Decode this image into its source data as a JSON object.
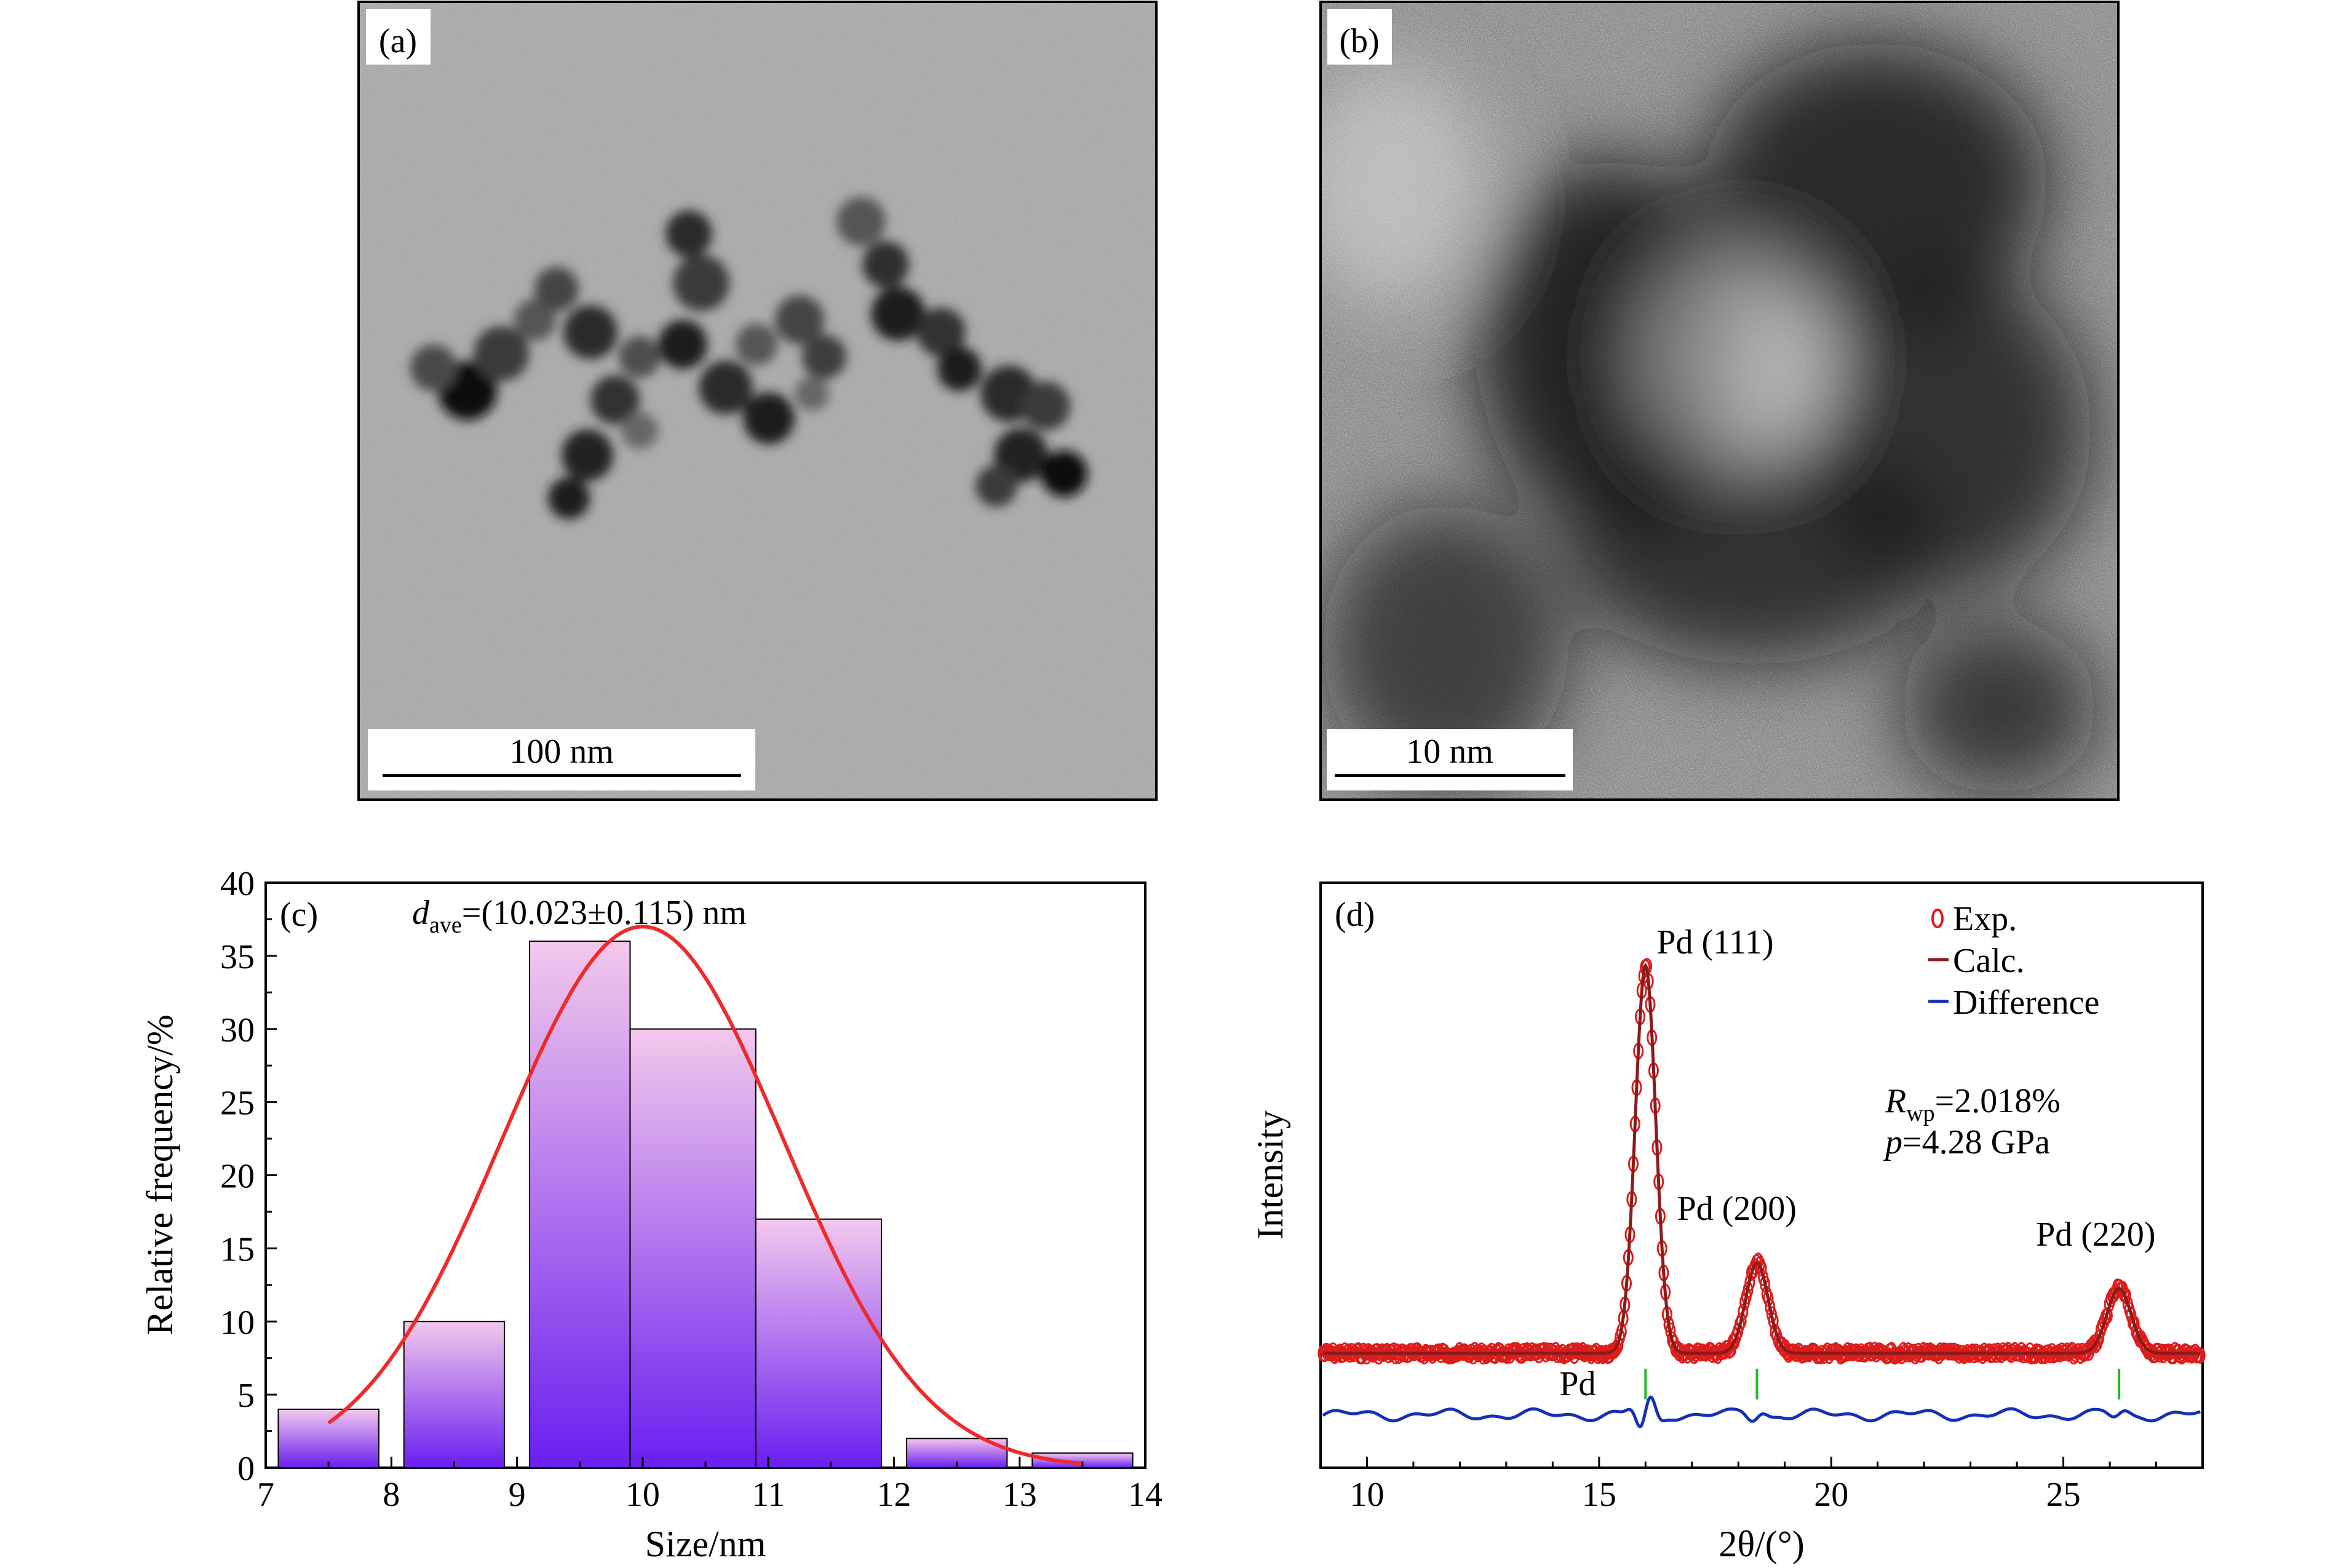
{
  "panels": {
    "a": {
      "label": "(a)",
      "scale_bar": "100 nm"
    },
    "b": {
      "label": "(b)",
      "scale_bar": "10 nm"
    }
  },
  "chart_data": [
    {
      "panel": "(c)",
      "type": "bar",
      "xlabel": "Size/nm",
      "ylabel": "Relative frequency/%",
      "xlim": [
        7,
        14
      ],
      "ylim": [
        0,
        40
      ],
      "xticks": [
        7,
        8,
        9,
        10,
        11,
        12,
        13,
        14
      ],
      "yticks": [
        0,
        5,
        10,
        15,
        20,
        25,
        30,
        35,
        40
      ],
      "bins": [
        [
          7.1,
          7.9
        ],
        [
          8.1,
          8.9
        ],
        [
          9.1,
          9.9
        ],
        [
          9.9,
          10.9
        ],
        [
          10.9,
          11.9
        ],
        [
          12.1,
          12.9
        ],
        [
          13.1,
          13.9
        ]
      ],
      "values": [
        4,
        10,
        36,
        30,
        17,
        2,
        1
      ],
      "fit": {
        "type": "gaussian",
        "center": 10.0,
        "peak": 37,
        "sigma": 1.12,
        "x_range": [
          7.5,
          13.5
        ],
        "color": "#ee2a2a"
      },
      "annotation": {
        "symbol": "d",
        "subscript": "ave",
        "text": "=(10.023±0.115) nm"
      },
      "bar_gradient": [
        "#f4c8ec",
        "#6a1ef0"
      ]
    },
    {
      "panel": "(d)",
      "type": "line",
      "xlabel": "2θ/(°)",
      "ylabel": "Intensity",
      "xlim": [
        9,
        28
      ],
      "xticks": [
        10,
        15,
        20,
        25
      ],
      "peaks": [
        {
          "label": "Pd (111)",
          "x": 16.0,
          "height": 0.9,
          "width": 0.22
        },
        {
          "label": "Pd (200)",
          "x": 18.4,
          "height": 0.21,
          "width": 0.24
        },
        {
          "label": "Pd (220)",
          "x": 26.2,
          "height": 0.15,
          "width": 0.26
        }
      ],
      "reflection_marks": {
        "label": "Pd",
        "x": [
          16.0,
          18.4,
          26.2
        ],
        "color": "#22bb22"
      },
      "series": [
        {
          "name": "Exp.",
          "style": "circles",
          "color": "#dd1c1c"
        },
        {
          "name": "Calc.",
          "style": "line",
          "color": "#8b1a1a"
        },
        {
          "name": "Difference",
          "style": "line",
          "color": "#1530b8"
        }
      ],
      "annotations": [
        {
          "symbol": "R",
          "subscript": "wp",
          "text": "=2.018%"
        },
        {
          "symbol": "p",
          "subscript": "",
          "text": "=4.28 GPa"
        }
      ]
    }
  ]
}
